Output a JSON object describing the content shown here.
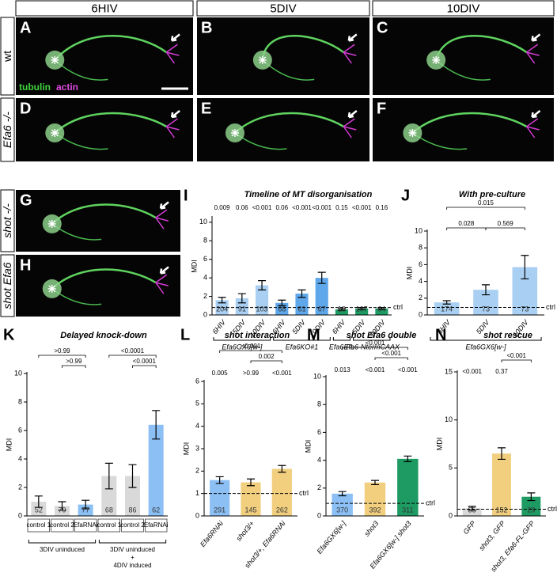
{
  "figure": {
    "column_headers": [
      "6HIV",
      "5DIV",
      "10DIV"
    ],
    "row_labels": [
      "wt",
      "Efa6 -/-",
      "shot -/-",
      "shot Efa6"
    ],
    "image_panels": [
      "A",
      "B",
      "C",
      "D",
      "E",
      "F",
      "G",
      "H"
    ],
    "stain_labels": [
      "tubulin",
      "actin"
    ]
  },
  "chart_data": [
    {
      "type": "bar",
      "panel": "I",
      "title": "Timeline of MT disorganisation",
      "ylabel": "MDI",
      "categories": [
        "6HIV",
        "5DIV",
        "10DIV",
        "6HIV",
        "5DIV",
        "10DIV",
        "6HIV",
        "5DIV",
        "10DIV"
      ],
      "values": [
        1.6,
        1.8,
        3.2,
        1.3,
        2.3,
        4.0,
        0.6,
        0.7,
        0.7
      ],
      "errors": [
        0.3,
        0.5,
        0.5,
        0.3,
        0.4,
        0.6,
        0.1,
        0.1,
        0.1
      ],
      "colors": [
        "#a9cff2",
        "#a9cff2",
        "#a9cff2",
        "#5ea7ea",
        "#5ea7ea",
        "#5ea7ea",
        "#1e9a63",
        "#1e9a63",
        "#1e9a63"
      ],
      "n_labels": [
        204,
        91,
        103,
        68,
        61,
        67,
        18,
        107,
        64
      ],
      "p_labels": [
        "0.009",
        "0.06",
        "<0.001",
        "0.06",
        "<0.001",
        "<0.001",
        "0.15",
        "<0.001",
        "0.16"
      ],
      "brackets": [],
      "groups": [
        {
          "label": [
            "Efa6GX6[w-]"
          ],
          "from": 0,
          "to": 2
        },
        {
          "label": [
            "Efa6KO#1"
          ],
          "from": 3,
          "to": 5
        },
        {
          "label": [
            "Efa6-FL"
          ],
          "from": 6,
          "to": 6
        },
        {
          "label": [
            "Efa6-NtermCAAX"
          ],
          "from": 7,
          "to": 8
        }
      ],
      "ctrl": {
        "value": 0.8,
        "label": "ctrl"
      },
      "ylim": [
        0,
        10.5
      ],
      "yticks": [
        0,
        2,
        4,
        6,
        8,
        10
      ]
    },
    {
      "type": "bar",
      "panel": "J",
      "title": "With pre-culture",
      "ylabel": "MDI",
      "categories": [
        "6HIV",
        "5DIV",
        "10DIV"
      ],
      "values": [
        1.5,
        3.0,
        5.7
      ],
      "errors": [
        0.2,
        0.6,
        1.4
      ],
      "colors": [
        "#a9cff2",
        "#a9cff2",
        "#a9cff2"
      ],
      "n_labels": [
        174,
        73,
        73
      ],
      "p_labels": [],
      "brackets": [
        {
          "from": 0,
          "to": 2,
          "label": "0.015"
        },
        {
          "from": 0,
          "to": 1,
          "label": "0.028"
        },
        {
          "from": 1,
          "to": 2,
          "label": "0.569"
        }
      ],
      "groups": [
        {
          "label": [
            "Efa6GX6[w-]"
          ],
          "from": 0,
          "to": 2
        }
      ],
      "ctrl": {
        "value": 0.9,
        "label": "ctrl"
      },
      "ylim": [
        0,
        10
      ],
      "yticks": [
        0,
        2,
        4,
        6,
        8,
        10
      ]
    },
    {
      "type": "bar",
      "panel": "K",
      "title": "Delayed knock-down",
      "ylabel": "MDI",
      "categories": [
        "control 1",
        "control 2",
        "EfaRNAi",
        "control 1",
        "control 2",
        "EfaRNAi"
      ],
      "values": [
        1.0,
        0.7,
        0.8,
        2.8,
        2.8,
        6.4
      ],
      "errors": [
        0.4,
        0.3,
        0.3,
        0.9,
        0.8,
        1.0
      ],
      "colors": [
        "#d9d9d9",
        "#d9d9d9",
        "#8cc0f5",
        "#d9d9d9",
        "#d9d9d9",
        "#8cc0f5"
      ],
      "n_labels": [
        52,
        79,
        77,
        68,
        86,
        62
      ],
      "p_labels": [],
      "brackets": [
        {
          "from": 0,
          "to": 2,
          "label": ">0.99"
        },
        {
          "from": 1,
          "to": 2,
          "label": ">0.99"
        },
        {
          "from": 3,
          "to": 5,
          "label": "<0.0001"
        },
        {
          "from": 4,
          "to": 5,
          "label": "<0.0001"
        }
      ],
      "groups": [
        {
          "label": [
            "3DIV uninduced"
          ],
          "from": 0,
          "to": 2
        },
        {
          "label": [
            "3DIV uninduced",
            "+",
            "4DIV induced"
          ],
          "from": 3,
          "to": 5
        }
      ],
      "ylim": [
        0,
        10
      ],
      "yticks": [
        0,
        2,
        4,
        6,
        8,
        10
      ]
    },
    {
      "type": "bar",
      "panel": "L",
      "title": "shot interaction",
      "ylabel": "MDI",
      "categories": [
        "Efa6RNAi",
        "shot3/+",
        "shot3/+, Efa6RNAi"
      ],
      "values": [
        1.6,
        1.5,
        2.1
      ],
      "errors": [
        0.15,
        0.15,
        0.15
      ],
      "colors": [
        "#8cc0f5",
        "#f1cf7f",
        "#f1cf7f"
      ],
      "n_labels": [
        291,
        145,
        262
      ],
      "p_labels": [
        "0.005",
        ">0.99",
        "<0.001"
      ],
      "brackets": [
        {
          "from": 0,
          "to": 2,
          "label": "<0.001"
        },
        {
          "from": 1,
          "to": 2,
          "label": "0.002"
        }
      ],
      "groups": [],
      "ctrl": {
        "value": 1.0,
        "label": "ctrl"
      },
      "ylim": [
        0,
        6
      ],
      "yticks": [
        0,
        1,
        2,
        3,
        4,
        5,
        6
      ]
    },
    {
      "type": "bar",
      "panel": "M",
      "title": "shot Efa6 double",
      "ylabel": "MDI",
      "categories": [
        "Efa6GX6[w-]",
        "shot3",
        "Efa6GX6[w-] shot3"
      ],
      "values": [
        1.6,
        2.4,
        4.1
      ],
      "errors": [
        0.15,
        0.15,
        0.2
      ],
      "colors": [
        "#8cc0f5",
        "#f1cf7f",
        "#1e9a63"
      ],
      "n_labels": [
        370,
        392,
        311
      ],
      "p_labels": [
        "0.013",
        "<0.001",
        "<0.001"
      ],
      "brackets": [
        {
          "from": 0,
          "to": 2,
          "label": "<0.001"
        },
        {
          "from": 1,
          "to": 2,
          "label": "<0.001"
        }
      ],
      "groups": [],
      "ctrl": {
        "value": 0.9,
        "label": "ctrl"
      },
      "ylim": [
        0,
        10
      ],
      "yticks": [
        0,
        2,
        4,
        6,
        8,
        10
      ]
    },
    {
      "type": "bar",
      "panel": "N",
      "title": "shot rescue",
      "ylabel": "MDI",
      "categories": [
        "GFP",
        "shot3, GFP",
        "shot3, Efa6-FL-GFP"
      ],
      "values": [
        0.8,
        6.5,
        2.0
      ],
      "errors": [
        0.2,
        0.6,
        0.4
      ],
      "colors": [
        "#d9d9d9",
        "#f1cf7f",
        "#1e9a63"
      ],
      "n_labels": [
        55,
        152,
        29
      ],
      "p_labels": [
        "<0.001",
        "0.37"
      ],
      "brackets": [
        {
          "from": 1,
          "to": 2,
          "label": "<0.001"
        }
      ],
      "groups": [],
      "ctrl": {
        "value": 0.7,
        "label": "ctrl"
      },
      "ylim": [
        0,
        15
      ],
      "yticks": [
        0,
        5,
        10,
        15
      ]
    }
  ]
}
